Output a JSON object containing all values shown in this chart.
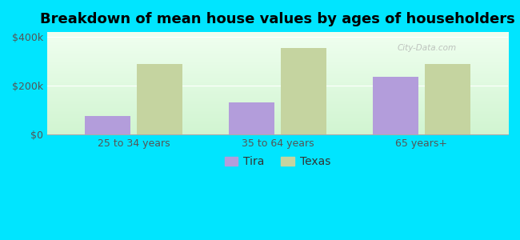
{
  "title": "Breakdown of mean house values by ages of householders",
  "categories": [
    "25 to 34 years",
    "35 to 64 years",
    "65 years+"
  ],
  "tira_values": [
    75000,
    130000,
    235000
  ],
  "texas_values": [
    290000,
    355000,
    290000
  ],
  "bar_color_tira": "#b39ddb",
  "bar_color_texas": "#c5d4a0",
  "background_color": "#00e5ff",
  "yticks": [
    0,
    200000,
    400000
  ],
  "ytick_labels": [
    "$0",
    "$200k",
    "$400k"
  ],
  "legend_labels": [
    "Tira",
    "Texas"
  ],
  "title_fontsize": 13,
  "tick_fontsize": 9,
  "legend_fontsize": 10,
  "ylim_max": 420000
}
